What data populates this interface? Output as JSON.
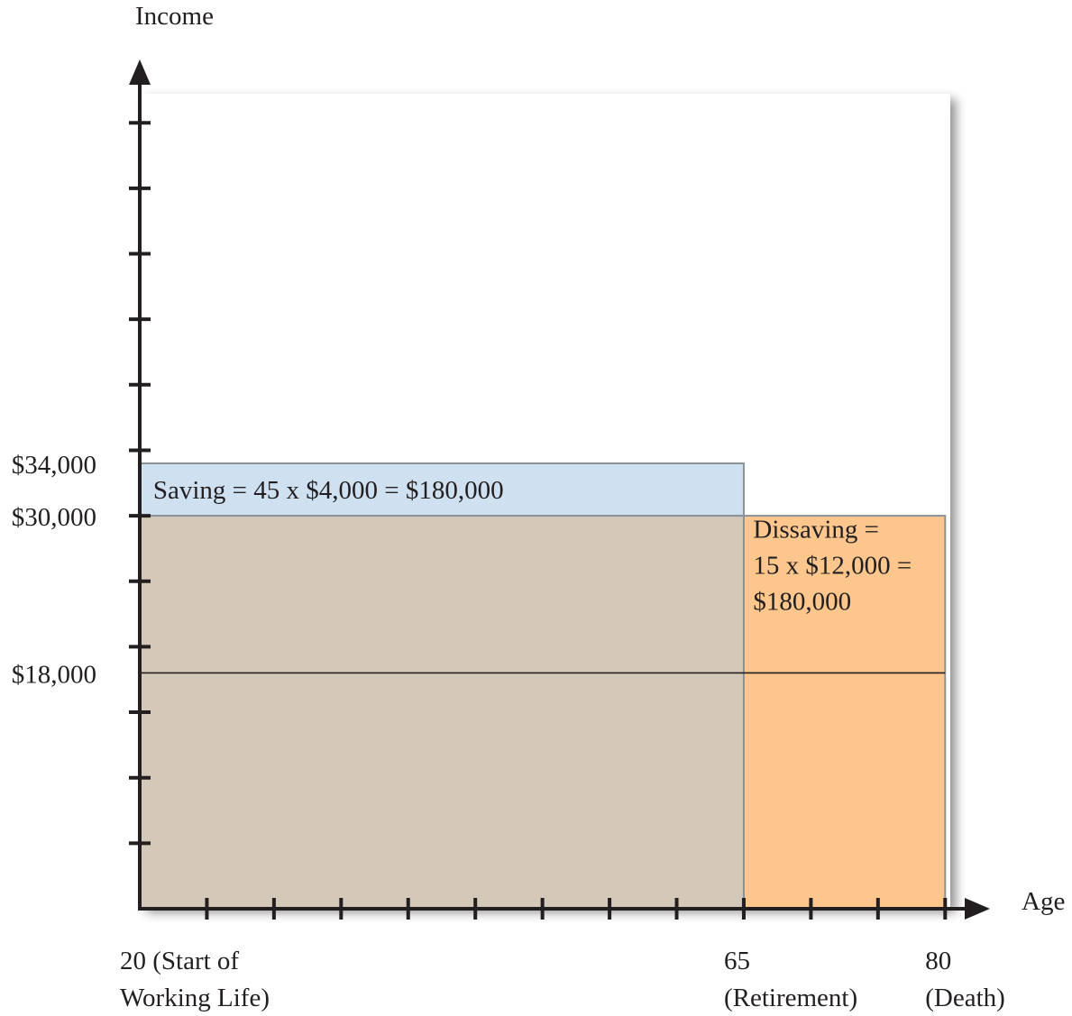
{
  "chart_data": {
    "type": "area",
    "title": "",
    "xlabel": "Age",
    "ylabel": "Income",
    "xlim": [
      20,
      81
    ],
    "ylim": [
      0,
      62000
    ],
    "x_ticks": [
      20,
      25,
      30,
      35,
      40,
      45,
      50,
      55,
      60,
      65,
      70,
      75,
      80
    ],
    "y_ticks": [
      5000,
      10000,
      15000,
      20000,
      25000,
      30000,
      35000,
      40000,
      45000,
      50000,
      55000,
      60000
    ],
    "x_tick_labels": [
      {
        "value": 20,
        "lines": [
          "20 (Start of",
          "Working Life)"
        ]
      },
      {
        "value": 65,
        "lines": [
          "65",
          "(Retirement)"
        ]
      },
      {
        "value": 80,
        "lines": [
          "80",
          "(Death)"
        ]
      }
    ],
    "y_tick_labels": [
      {
        "value": 34000,
        "label": "$34,000"
      },
      {
        "value": 30000,
        "label": "$30,000"
      },
      {
        "value": 18000,
        "label": "$18,000"
      }
    ],
    "regions": [
      {
        "name": "saving",
        "x": [
          20,
          65
        ],
        "y": [
          30000,
          34000
        ],
        "color": "#cfe0f1"
      },
      {
        "name": "consumption",
        "x": [
          20,
          65
        ],
        "y": [
          0,
          30000
        ],
        "color": "#d4c8b8"
      },
      {
        "name": "dissaving",
        "x": [
          65,
          80
        ],
        "y": [
          0,
          30000
        ],
        "color": "#fcc68d"
      }
    ],
    "lines": [
      {
        "name": "income-level",
        "x": [
          20,
          80
        ],
        "y": 18000,
        "color": "#231f20"
      }
    ],
    "annotations": [
      {
        "name": "saving-annotation",
        "lines": [
          "Saving = 45 x $4,000 = $180,000"
        ],
        "x": 21,
        "y": 32000
      },
      {
        "name": "dissaving-annotation",
        "lines": [
          "Dissaving =",
          "15 x  $12,000 =",
          "$180,000"
        ],
        "x": 65.7,
        "y": 29000
      }
    ],
    "colors": {
      "axis": "#231f20",
      "region_border": "#8c9196",
      "text": "#231f20"
    }
  }
}
